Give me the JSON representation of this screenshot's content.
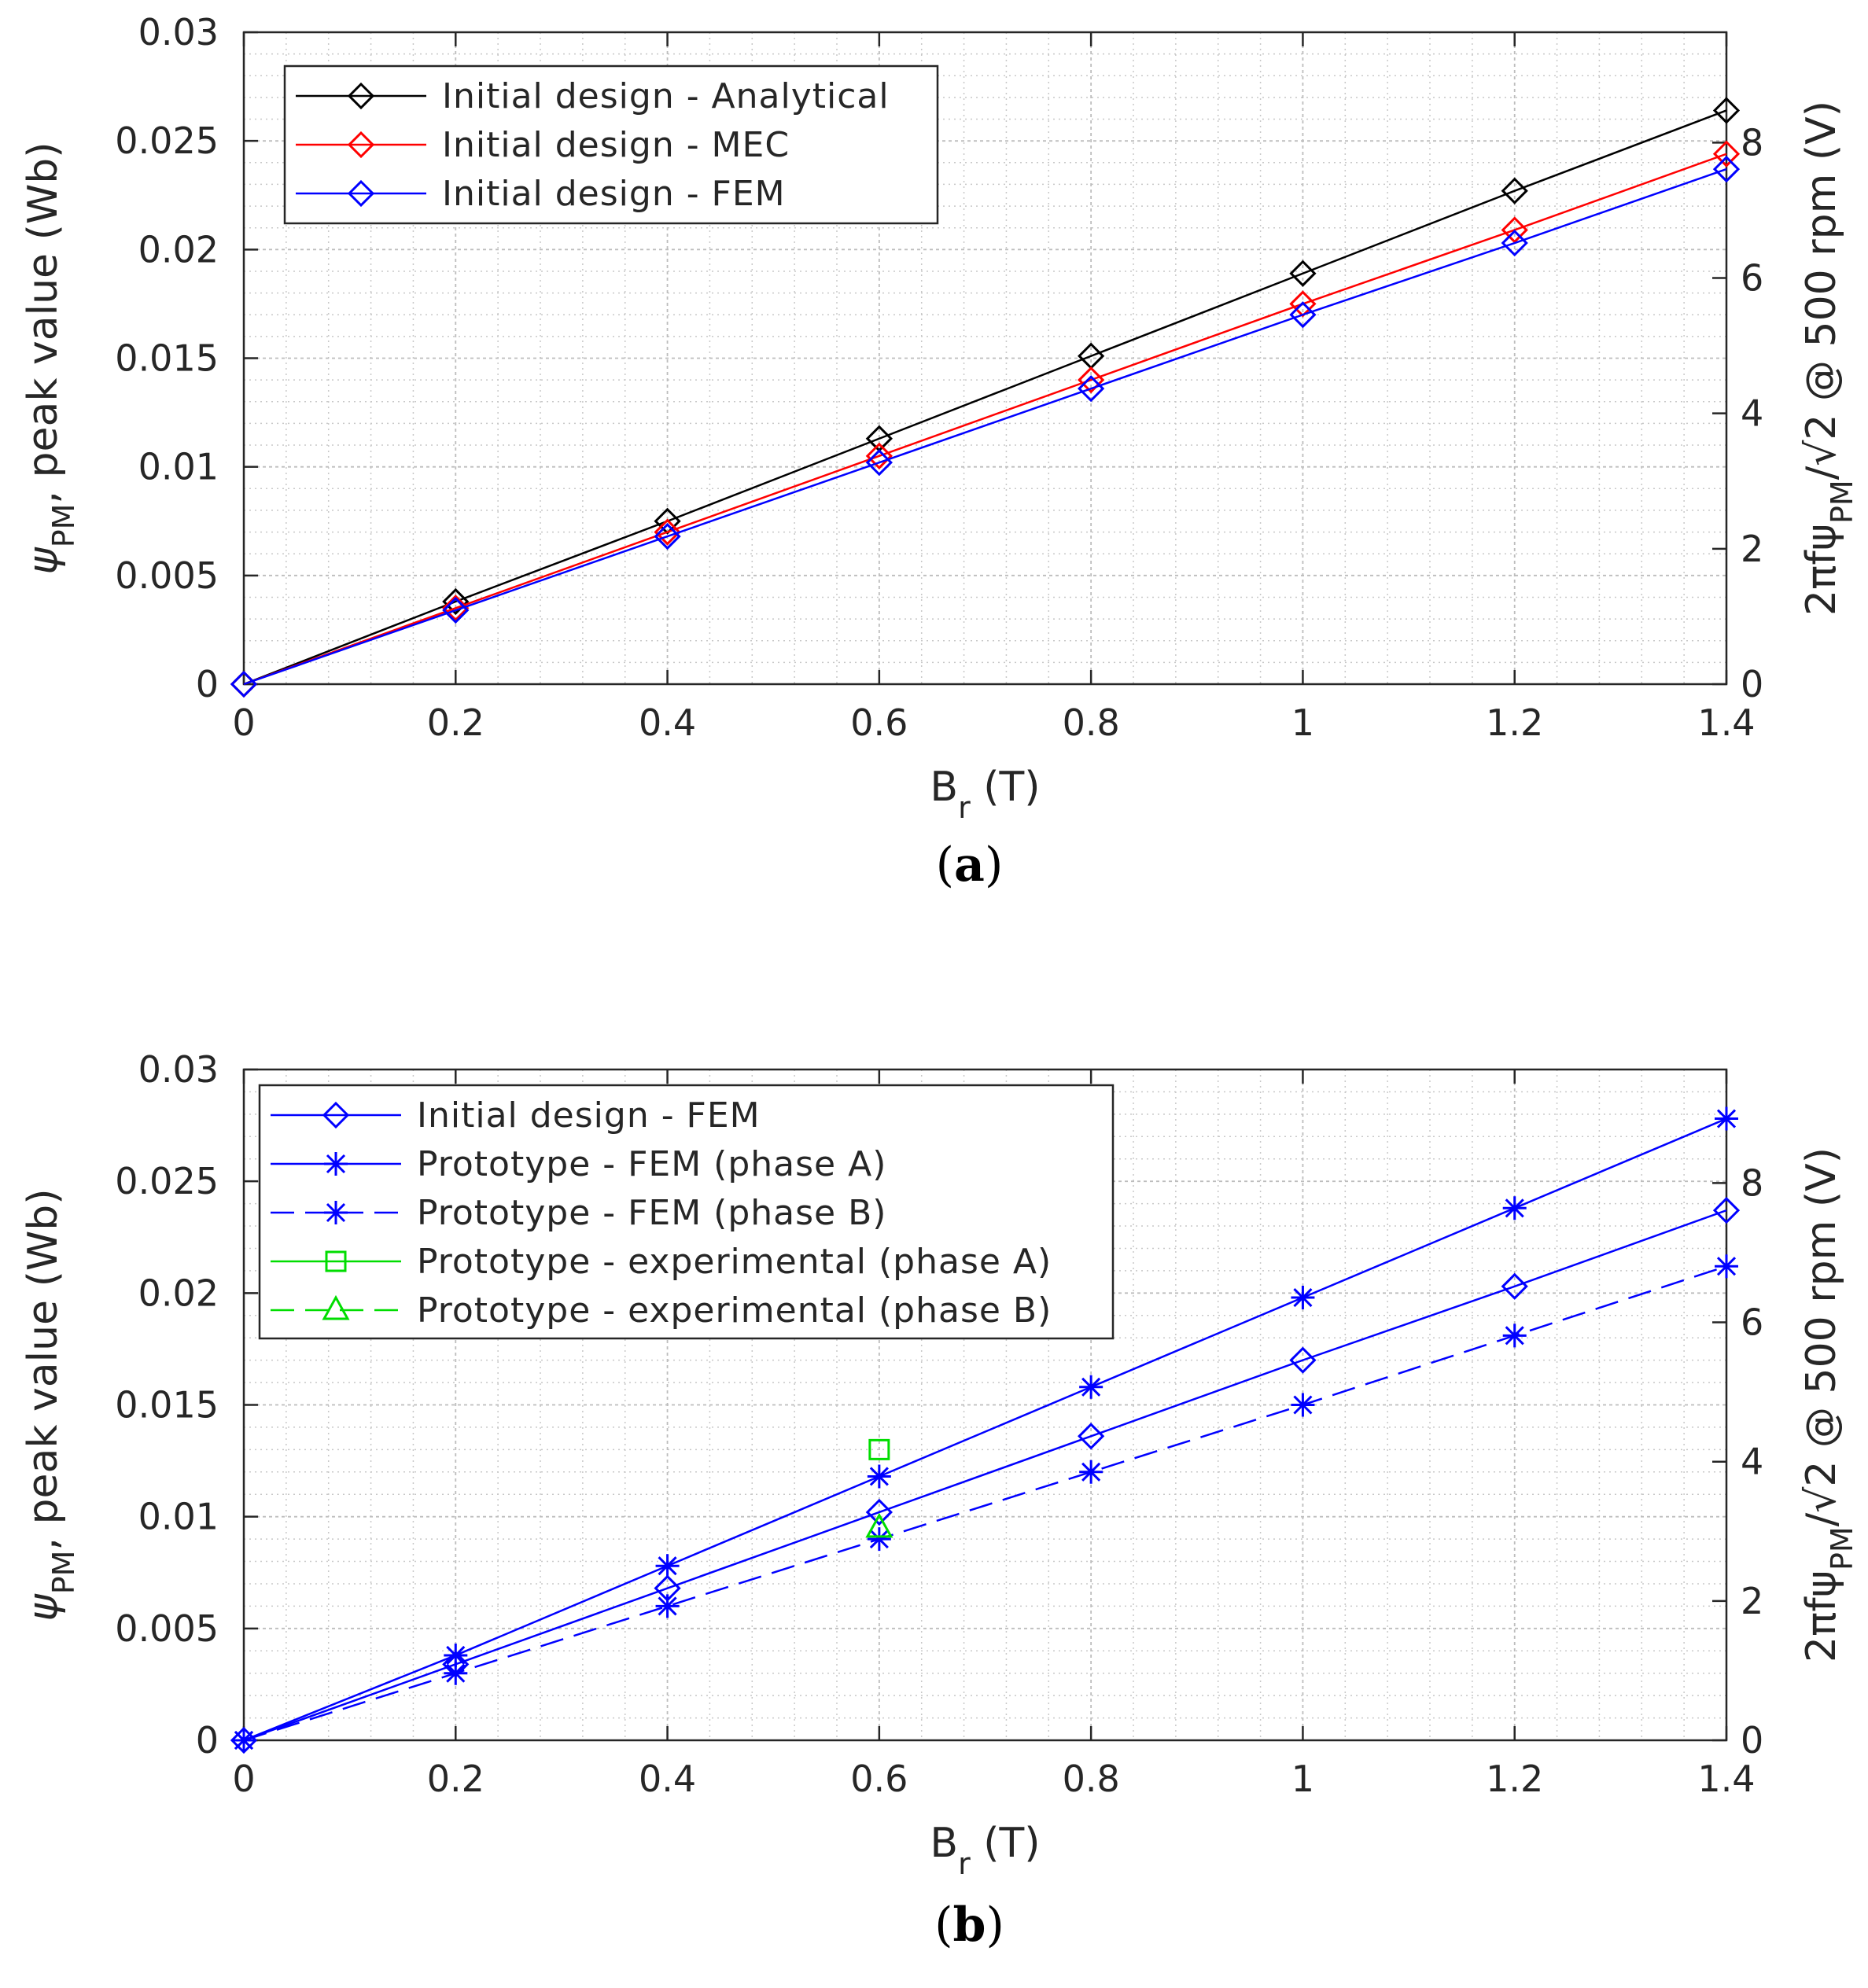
{
  "chart_data": [
    {
      "id": "a",
      "type": "line",
      "caption_letter": "a",
      "xlabel_main": "B",
      "xlabel_sub": "r",
      "xlabel_unit": " (T)",
      "ylabel_left": {
        "symbol": "ψ",
        "sub": "PM",
        "rest": ", peak value (Wb)"
      },
      "ylabel_right": {
        "pre": "2πfψ",
        "sub": "PM",
        "rest": "/√2 @ 500 rpm (V)"
      },
      "xlim": [
        0,
        1.4
      ],
      "ylim": [
        0,
        0.03
      ],
      "ylim_right": [
        0,
        9.63
      ],
      "x_ticks": [
        "0",
        "0.2",
        "0.4",
        "0.6",
        "0.8",
        "1",
        "1.2",
        "1.4"
      ],
      "y_ticks": [
        "0",
        "0.005",
        "0.01",
        "0.015",
        "0.02",
        "0.025",
        "0.03"
      ],
      "y_right_ticks": [
        "0",
        "2",
        "4",
        "6",
        "8"
      ],
      "grid": true,
      "legend_position": "top-left",
      "series": [
        {
          "name": "Initial design - Analytical",
          "color": "#000000",
          "marker": "diamond",
          "dash": "solid",
          "x": [
            0,
            0.2,
            0.4,
            0.6,
            0.8,
            1.0,
            1.2,
            1.4
          ],
          "y": [
            0,
            0.0038,
            0.0075,
            0.0113,
            0.0151,
            0.0189,
            0.0227,
            0.0264
          ]
        },
        {
          "name": "Initial design - MEC",
          "color": "#ff0000",
          "marker": "diamond",
          "dash": "solid",
          "x": [
            0,
            0.2,
            0.4,
            0.6,
            0.8,
            1.0,
            1.2,
            1.4
          ],
          "y": [
            0,
            0.0035,
            0.007,
            0.0105,
            0.014,
            0.0175,
            0.0209,
            0.0244
          ]
        },
        {
          "name": "Initial design - FEM",
          "color": "#0000ff",
          "marker": "diamond",
          "dash": "solid",
          "x": [
            0,
            0.2,
            0.4,
            0.6,
            0.8,
            1.0,
            1.2,
            1.4
          ],
          "y": [
            0,
            0.0034,
            0.0068,
            0.0102,
            0.0136,
            0.017,
            0.0203,
            0.0237
          ]
        }
      ]
    },
    {
      "id": "b",
      "type": "line",
      "caption_letter": "b",
      "xlabel_main": "B",
      "xlabel_sub": "r",
      "xlabel_unit": " (T)",
      "ylabel_left": {
        "symbol": "ψ",
        "sub": "PM",
        "rest": ", peak value (Wb)"
      },
      "ylabel_right": {
        "pre": "2πfψ",
        "sub": "PM",
        "rest": "/√2 @ 500 rpm (V)"
      },
      "xlim": [
        0,
        1.4
      ],
      "ylim": [
        0,
        0.03
      ],
      "ylim_right": [
        0,
        9.63
      ],
      "x_ticks": [
        "0",
        "0.2",
        "0.4",
        "0.6",
        "0.8",
        "1",
        "1.2",
        "1.4"
      ],
      "y_ticks": [
        "0",
        "0.005",
        "0.01",
        "0.015",
        "0.02",
        "0.025",
        "0.03"
      ],
      "y_right_ticks": [
        "0",
        "2",
        "4",
        "6",
        "8"
      ],
      "grid": true,
      "legend_position": "top-left",
      "series": [
        {
          "name": "Initial design - FEM",
          "color": "#0000ff",
          "marker": "diamond",
          "dash": "solid",
          "x": [
            0,
            0.2,
            0.4,
            0.6,
            0.8,
            1.0,
            1.2,
            1.4
          ],
          "y": [
            0,
            0.0034,
            0.0068,
            0.0102,
            0.0136,
            0.017,
            0.0203,
            0.0237
          ]
        },
        {
          "name": "Prototype - FEM (phase A)",
          "color": "#0000ff",
          "marker": "star",
          "dash": "solid",
          "x": [
            0,
            0.2,
            0.4,
            0.6,
            0.8,
            1.0,
            1.2,
            1.4
          ],
          "y": [
            0,
            0.0038,
            0.0078,
            0.0118,
            0.0158,
            0.0198,
            0.0238,
            0.0278
          ]
        },
        {
          "name": "Prototype - FEM (phase B)",
          "color": "#0000ff",
          "marker": "star",
          "dash": "dashed",
          "x": [
            0,
            0.2,
            0.4,
            0.6,
            0.8,
            1.0,
            1.2,
            1.4
          ],
          "y": [
            0,
            0.003,
            0.006,
            0.009,
            0.012,
            0.015,
            0.0181,
            0.0212
          ]
        },
        {
          "name": "Prototype - experimental (phase A)",
          "color": "#00dd00",
          "marker": "square",
          "dash": "solid",
          "x": [
            0.6
          ],
          "y": [
            0.013
          ]
        },
        {
          "name": "Prototype - experimental (phase B)",
          "color": "#00dd00",
          "marker": "triangle",
          "dash": "dashed",
          "x": [
            0.6
          ],
          "y": [
            0.0095
          ]
        }
      ]
    }
  ]
}
